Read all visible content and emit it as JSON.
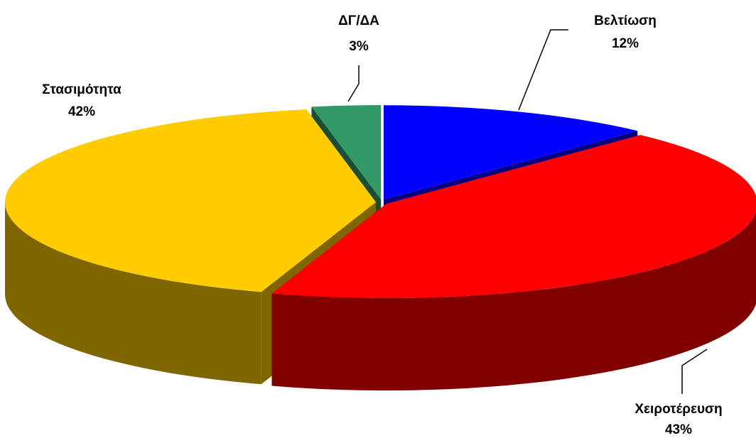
{
  "chart_data": {
    "type": "pie",
    "categories": [
      "Βελτίωση",
      "Χειροτέρευση",
      "Στασιμότητα",
      "ΔΓ/ΔΑ"
    ],
    "values": [
      12,
      43,
      42,
      3
    ],
    "value_labels": [
      "12%",
      "43%",
      "42%",
      "3%"
    ],
    "colors": [
      "#0000ff",
      "#ff0000",
      "#ffcc00",
      "#339966"
    ]
  }
}
